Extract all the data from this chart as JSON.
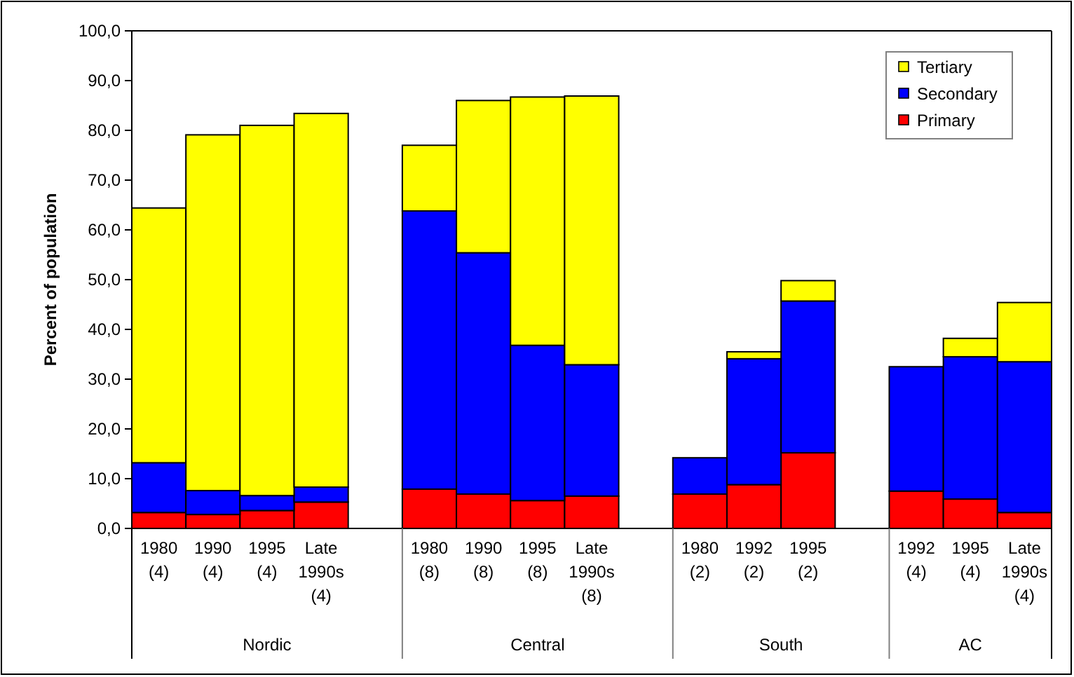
{
  "chart_data": {
    "type": "bar",
    "stacked": true,
    "ylabel": "Percent of population",
    "categories": [
      "1980\n(4)",
      "1990\n(4)",
      "1995\n(4)",
      "Late\n1990s\n(4)",
      null,
      "1980\n(8)",
      "1990\n(8)",
      "1995\n(8)",
      "Late\n1990s\n(8)",
      null,
      "1980\n(2)",
      "1992\n(2)",
      "1995\n(2)",
      null,
      "1992\n(4)",
      "1995\n(4)",
      "Late\n1990s\n(4)"
    ],
    "series": [
      {
        "name": "Primary",
        "color": "#ff0000",
        "values": [
          3.2,
          2.8,
          3.6,
          5.3,
          null,
          7.9,
          6.9,
          5.6,
          6.5,
          null,
          6.9,
          8.8,
          15.2,
          null,
          7.5,
          5.9,
          3.2
        ]
      },
      {
        "name": "Secondary",
        "color": "#0000ff",
        "values": [
          10.0,
          4.8,
          3.0,
          3.0,
          null,
          55.9,
          48.5,
          31.2,
          26.4,
          null,
          7.3,
          25.3,
          30.5,
          null,
          25.0,
          28.6,
          30.3
        ]
      },
      {
        "name": "Tertiary",
        "color": "#ffff00",
        "values": [
          51.2,
          71.5,
          74.4,
          75.1,
          null,
          13.2,
          30.6,
          49.9,
          54.0,
          null,
          0,
          1.4,
          4.1,
          null,
          0,
          3.7,
          11.9
        ]
      }
    ],
    "annotations": [
      "Nordic",
      "Central",
      "South",
      "AC"
    ],
    "ylim": [
      0,
      100
    ],
    "yticks": [
      {
        "value": 0,
        "label": "0,0"
      },
      {
        "value": 10,
        "label": "10,0"
      },
      {
        "value": 20,
        "label": "20,0"
      },
      {
        "value": 30,
        "label": "30,0"
      },
      {
        "value": 40,
        "label": "40,0"
      },
      {
        "value": 50,
        "label": "50,0"
      },
      {
        "value": 60,
        "label": "60,0"
      },
      {
        "value": 70,
        "label": "70,0"
      },
      {
        "value": 80,
        "label": "80,0"
      },
      {
        "value": 90,
        "label": "90,0"
      },
      {
        "value": 100,
        "label": "100,0"
      }
    ],
    "grid": false,
    "legend": "top right"
  }
}
